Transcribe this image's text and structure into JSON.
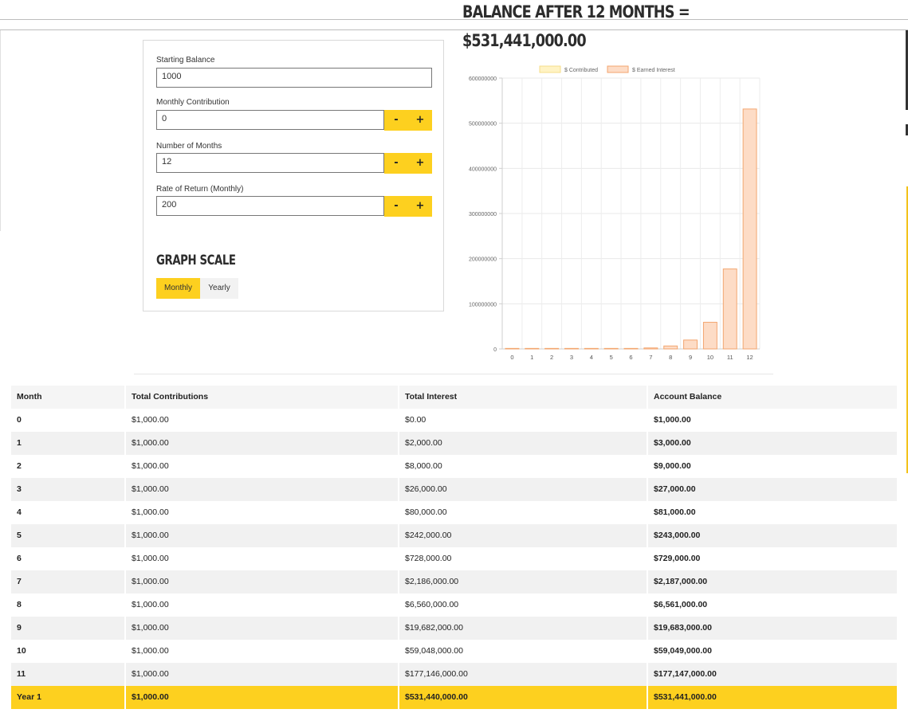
{
  "result": {
    "line1": "BALANCE AFTER 12 MONTHS =",
    "line2": "$531,441,000.00"
  },
  "form": {
    "starting_balance": {
      "label": "Starting Balance",
      "value": "1000"
    },
    "monthly_contribution": {
      "label": "Monthly Contribution",
      "value": "0"
    },
    "number_of_months": {
      "label": "Number of Months",
      "value": "12"
    },
    "rate_of_return": {
      "label": "Rate of Return (Monthly)",
      "value": "200"
    },
    "minus_label": "-",
    "plus_label": "+"
  },
  "graph_scale": {
    "title": "GRAPH SCALE",
    "options": [
      "Monthly",
      "Yearly"
    ],
    "selected": "Monthly",
    "accent": "#fdd01f"
  },
  "chart_data": {
    "type": "bar",
    "stacked": true,
    "categories": [
      "0",
      "1",
      "2",
      "3",
      "4",
      "5",
      "6",
      "7",
      "8",
      "9",
      "10",
      "11",
      "12"
    ],
    "series": [
      {
        "name": "$ Contributed",
        "color": "#fff3c4",
        "border": "#f5dd8a",
        "values": [
          1000,
          1000,
          1000,
          1000,
          1000,
          1000,
          1000,
          1000,
          1000,
          1000,
          1000,
          1000,
          1000
        ]
      },
      {
        "name": "$ Earned Interest",
        "color": "#fddcc6",
        "border": "#f3a56f",
        "values": [
          0,
          2000,
          8000,
          26000,
          80000,
          242000,
          728000,
          2186000,
          6560000,
          19682000,
          59048000,
          177146000,
          531440000
        ]
      }
    ],
    "yticks": [
      "0",
      "100000000",
      "200000000",
      "300000000",
      "400000000",
      "500000000",
      "600000000"
    ],
    "ylim": [
      0,
      600000000
    ],
    "legend": "top",
    "grid": true
  },
  "table": {
    "headers": [
      "Month",
      "Total Contributions",
      "Total Interest",
      "Account Balance"
    ],
    "rows": [
      [
        "0",
        "$1,000.00",
        "$0.00",
        "$1,000.00"
      ],
      [
        "1",
        "$1,000.00",
        "$2,000.00",
        "$3,000.00"
      ],
      [
        "2",
        "$1,000.00",
        "$8,000.00",
        "$9,000.00"
      ],
      [
        "3",
        "$1,000.00",
        "$26,000.00",
        "$27,000.00"
      ],
      [
        "4",
        "$1,000.00",
        "$80,000.00",
        "$81,000.00"
      ],
      [
        "5",
        "$1,000.00",
        "$242,000.00",
        "$243,000.00"
      ],
      [
        "6",
        "$1,000.00",
        "$728,000.00",
        "$729,000.00"
      ],
      [
        "7",
        "$1,000.00",
        "$2,186,000.00",
        "$2,187,000.00"
      ],
      [
        "8",
        "$1,000.00",
        "$6,560,000.00",
        "$6,561,000.00"
      ],
      [
        "9",
        "$1,000.00",
        "$19,682,000.00",
        "$19,683,000.00"
      ],
      [
        "10",
        "$1,000.00",
        "$59,048,000.00",
        "$59,049,000.00"
      ],
      [
        "11",
        "$1,000.00",
        "$177,146,000.00",
        "$177,147,000.00"
      ]
    ],
    "total": [
      "Year 1",
      "$1,000.00",
      "$531,440,000.00",
      "$531,441,000.00"
    ]
  }
}
